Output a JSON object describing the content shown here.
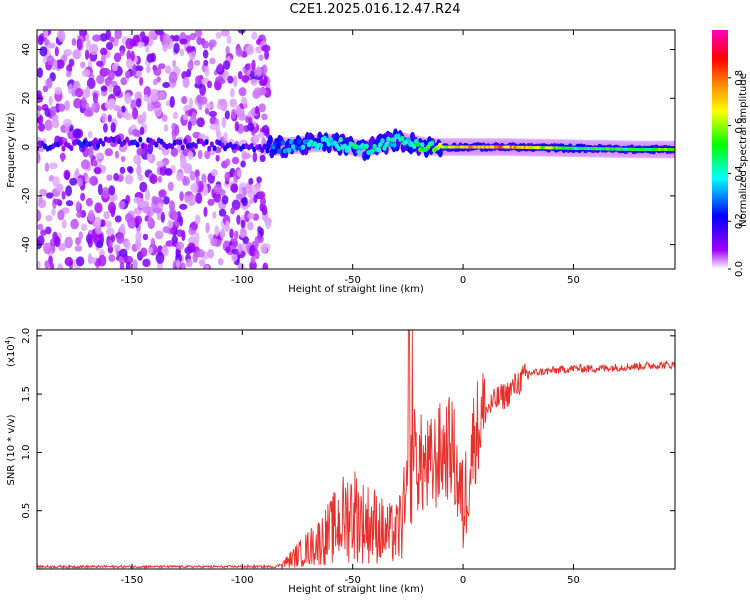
{
  "title": "C2E1.2025.016.12.47.R24",
  "chart_data": [
    {
      "type": "heatmap",
      "xlabel": "Height of straight line (km)",
      "ylabel": "Frequency (Hz)",
      "xlim": [
        -193,
        96
      ],
      "ylim": [
        -50,
        48
      ],
      "xticks": [
        -150,
        -100,
        -50,
        0,
        50
      ],
      "yticks": [
        -40,
        -20,
        0,
        20,
        40
      ],
      "colorbar": {
        "label": "Normalized spectral amplitude",
        "range": [
          0,
          1
        ],
        "ticks": [
          0.0,
          0.2,
          0.4,
          0.6,
          0.8
        ],
        "colors": [
          "#ffffff",
          "#a000ff",
          "#0000ff",
          "#00ffff",
          "#00ff00",
          "#ffff00",
          "#ff7f00",
          "#ff0000",
          "#ff00c0"
        ]
      },
      "noise_region_x": [
        -193,
        -88
      ],
      "signal_trace": [
        {
          "x": -193,
          "y": 0,
          "amp": 0.25
        },
        {
          "x": -160,
          "y": 2,
          "amp": 0.2
        },
        {
          "x": -85,
          "y": 0,
          "amp": 0.3
        },
        {
          "x": -60,
          "y": 2,
          "amp": 0.45
        },
        {
          "x": -45,
          "y": -1,
          "amp": 0.45
        },
        {
          "x": -30,
          "y": 3,
          "amp": 0.4
        },
        {
          "x": -15,
          "y": 0,
          "amp": 0.55
        },
        {
          "x": 0,
          "y": 0,
          "amp": 0.75
        },
        {
          "x": 20,
          "y": 0,
          "amp": 0.8
        },
        {
          "x": 50,
          "y": -0.5,
          "amp": 0.5
        },
        {
          "x": 80,
          "y": -1,
          "amp": 0.55
        },
        {
          "x": 96,
          "y": -1,
          "amp": 0.6
        }
      ]
    },
    {
      "type": "line",
      "xlabel": "Height of straight line (km)",
      "ylabel": "SNR (10 * v/v)",
      "yexponent": "(x10",
      "yexponent_power": "4",
      "yexponent_close": ")",
      "xlim": [
        -193,
        96
      ],
      "ylim": [
        0,
        2.05
      ],
      "xticks": [
        -150,
        -100,
        -50,
        0,
        50
      ],
      "yticks": [
        0.5,
        1.0,
        1.5,
        2.0
      ],
      "color": "#e8302a",
      "series": [
        {
          "x": [
            -193,
            -150,
            -100,
            -85,
            -80,
            -75,
            -70,
            -65,
            -60,
            -55,
            -50,
            -45,
            -40,
            -35,
            -30,
            -25,
            -22,
            -20,
            -15,
            -10,
            -5,
            0,
            5,
            10,
            15,
            20,
            25,
            30,
            40,
            50,
            60,
            70,
            80,
            90,
            96
          ],
          "values": [
            0.02,
            0.02,
            0.02,
            0.02,
            0.06,
            0.12,
            0.18,
            0.24,
            0.32,
            0.42,
            0.5,
            0.4,
            0.38,
            0.3,
            0.3,
            0.55,
            0.95,
            0.9,
            0.85,
            1.0,
            1.05,
            0.5,
            1.15,
            1.35,
            1.45,
            1.5,
            1.6,
            1.68,
            1.7,
            1.72,
            1.72,
            1.73,
            1.74,
            1.75,
            1.75
          ]
        }
      ]
    }
  ]
}
